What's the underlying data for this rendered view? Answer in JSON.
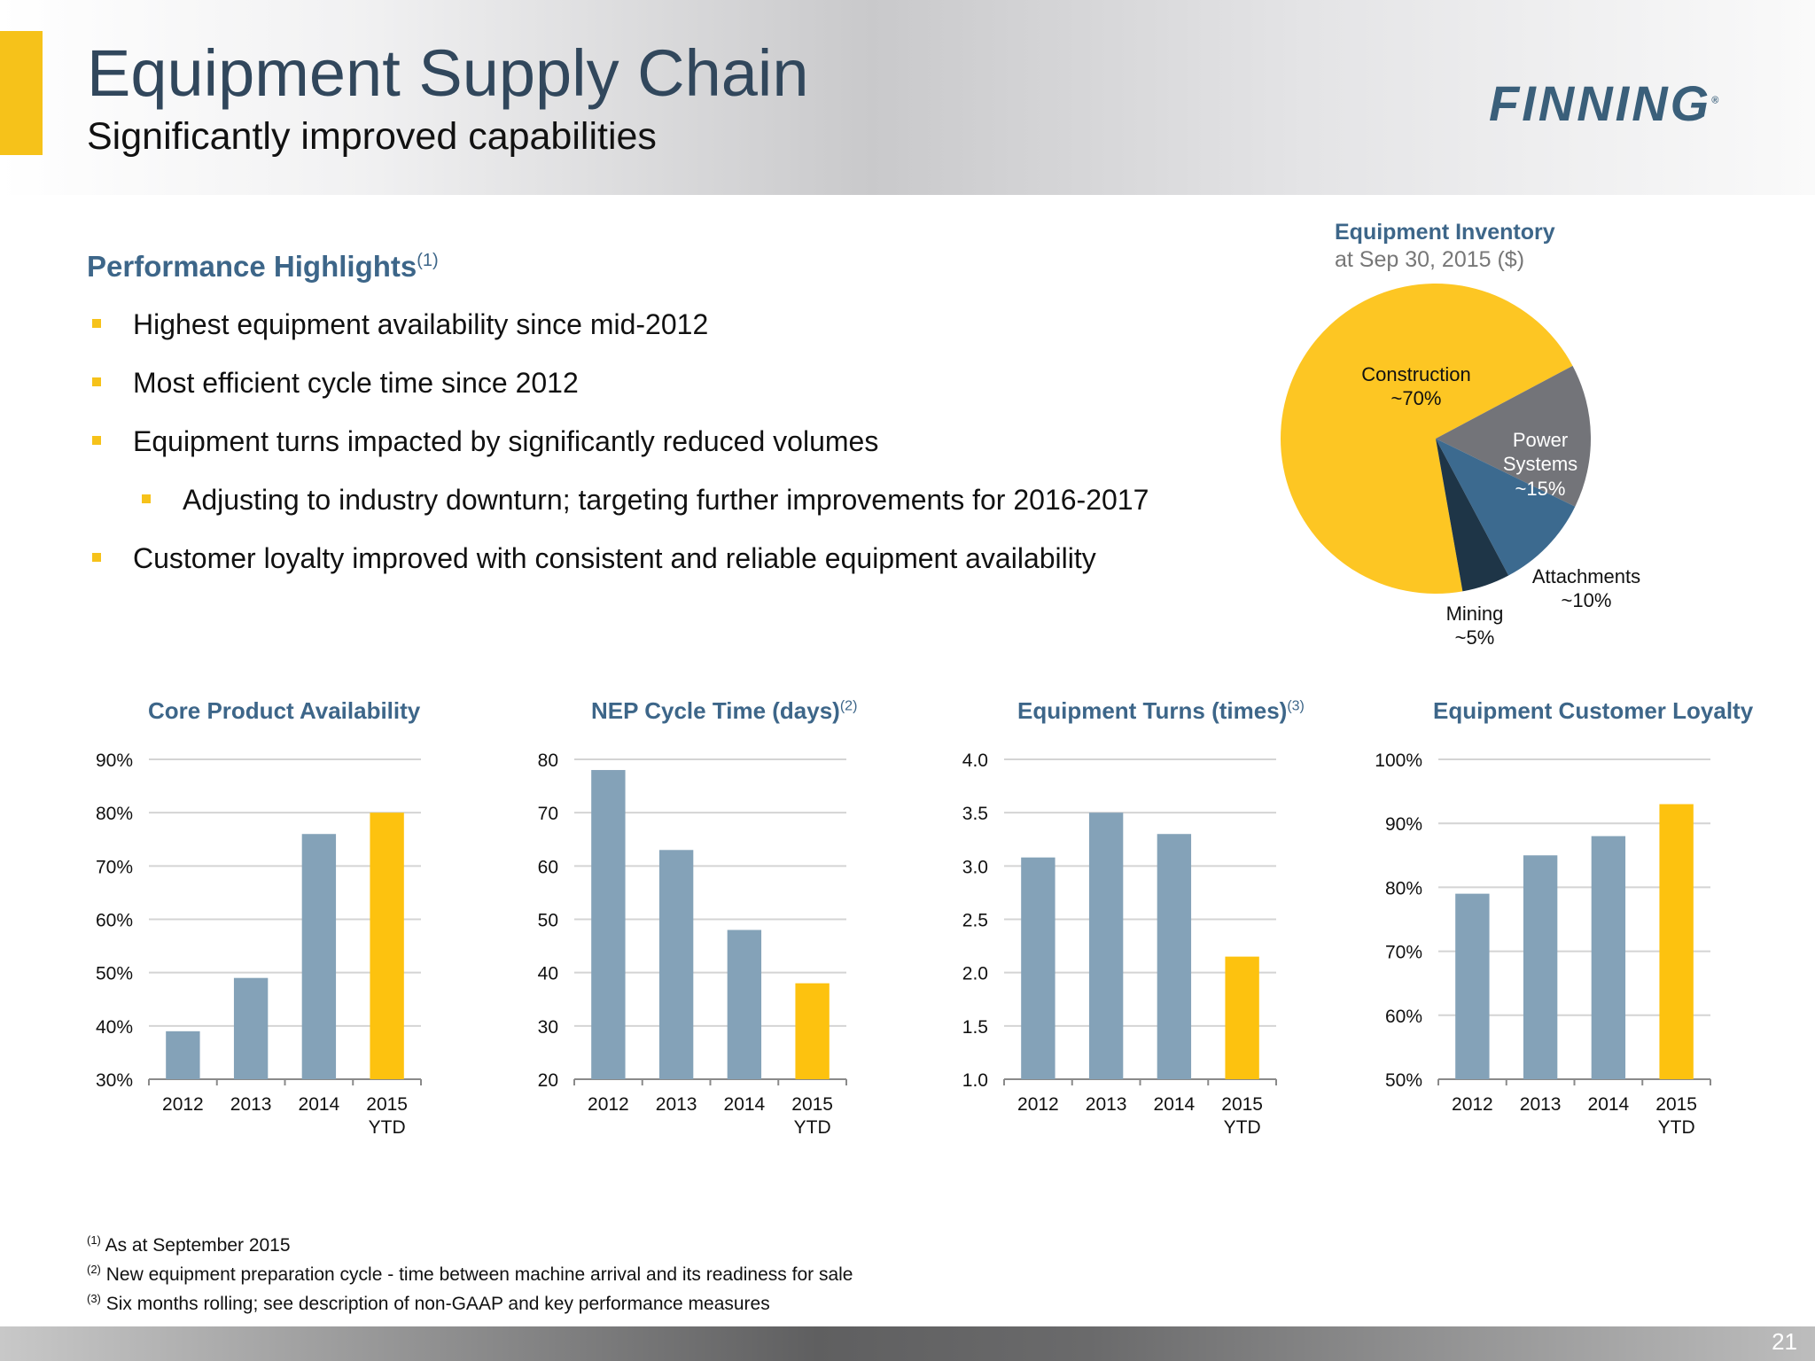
{
  "header": {
    "title": "Equipment Supply Chain",
    "subtitle": "Significantly improved capabilities",
    "logo_text": "FINNING",
    "logo_mark": "®"
  },
  "highlights": {
    "title": "Performance Highlights",
    "title_note": "(1)",
    "bullets": [
      "Highest equipment availability since mid-2012",
      "Most efficient cycle time since 2012",
      "Equipment turns impacted by significantly reduced volumes",
      "Adjusting to industry downturn; targeting further improvements for 2016-2017",
      "Customer loyalty improved with consistent and reliable equipment availability"
    ]
  },
  "colors": {
    "accent": "#f6c21a",
    "bar": "#84a2b8",
    "highlight_bar": "#fdc20f",
    "title_blue": "#3d6689"
  },
  "footnotes": [
    {
      "marker": "(1)",
      "text": "As at September 2015"
    },
    {
      "marker": "(2)",
      "text": "New equipment preparation cycle - time between machine arrival and its readiness for sale"
    },
    {
      "marker": "(3)",
      "text": "Six months rolling; see description of non-GAAP and key performance measures"
    }
  ],
  "page_number": "21",
  "chart_data": [
    {
      "type": "pie",
      "title": "Equipment Inventory",
      "subtitle": "at Sep 30, 2015 ($)",
      "slices": [
        {
          "label": "Construction",
          "value_label": "~70%",
          "value": 70,
          "color": "#fdc623"
        },
        {
          "label": "Power Systems",
          "value_label": "~15%",
          "value": 15,
          "color": "#737479"
        },
        {
          "label": "Attachments",
          "value_label": "~10%",
          "value": 10,
          "color": "#3c6a8f"
        },
        {
          "label": "Mining",
          "value_label": "~5%",
          "value": 5,
          "color": "#1e3547"
        }
      ]
    },
    {
      "type": "bar",
      "title": "Core Product Availability",
      "title_note": "",
      "categories": [
        "2012",
        "2013",
        "2014",
        "2015 YTD"
      ],
      "values": [
        39,
        49,
        76,
        80
      ],
      "highlight_index": 3,
      "ylim": [
        30,
        90
      ],
      "yticks": [
        30,
        40,
        50,
        60,
        70,
        80,
        90
      ],
      "ytick_labels": [
        "30%",
        "40%",
        "50%",
        "60%",
        "70%",
        "80%",
        "90%"
      ],
      "grid": true
    },
    {
      "type": "bar",
      "title": "NEP Cycle Time (days)",
      "title_note": "(2)",
      "categories": [
        "2012",
        "2013",
        "2014",
        "2015 YTD"
      ],
      "values": [
        78,
        63,
        48,
        38
      ],
      "highlight_index": 3,
      "ylim": [
        20,
        80
      ],
      "yticks": [
        20,
        30,
        40,
        50,
        60,
        70,
        80
      ],
      "ytick_labels": [
        "20",
        "30",
        "40",
        "50",
        "60",
        "70",
        "80"
      ],
      "grid": true
    },
    {
      "type": "bar",
      "title": "Equipment Turns (times)",
      "title_note": "(3)",
      "categories": [
        "2012",
        "2013",
        "2014",
        "2015 YTD"
      ],
      "values": [
        3.08,
        3.5,
        3.3,
        2.15
      ],
      "highlight_index": 3,
      "ylim": [
        1.0,
        4.0
      ],
      "yticks": [
        1.0,
        1.5,
        2.0,
        2.5,
        3.0,
        3.5,
        4.0
      ],
      "ytick_labels": [
        "1.0",
        "1.5",
        "2.0",
        "2.5",
        "3.0",
        "3.5",
        "4.0"
      ],
      "grid": true
    },
    {
      "type": "bar",
      "title": "Equipment Customer Loyalty",
      "title_note": "",
      "categories": [
        "2012",
        "2013",
        "2014",
        "2015 YTD"
      ],
      "values": [
        79,
        85,
        88,
        93
      ],
      "highlight_index": 3,
      "ylim": [
        50,
        100
      ],
      "yticks": [
        50,
        60,
        70,
        80,
        90,
        100
      ],
      "ytick_labels": [
        "50%",
        "60%",
        "70%",
        "80%",
        "90%",
        "100%"
      ],
      "grid": true
    }
  ]
}
